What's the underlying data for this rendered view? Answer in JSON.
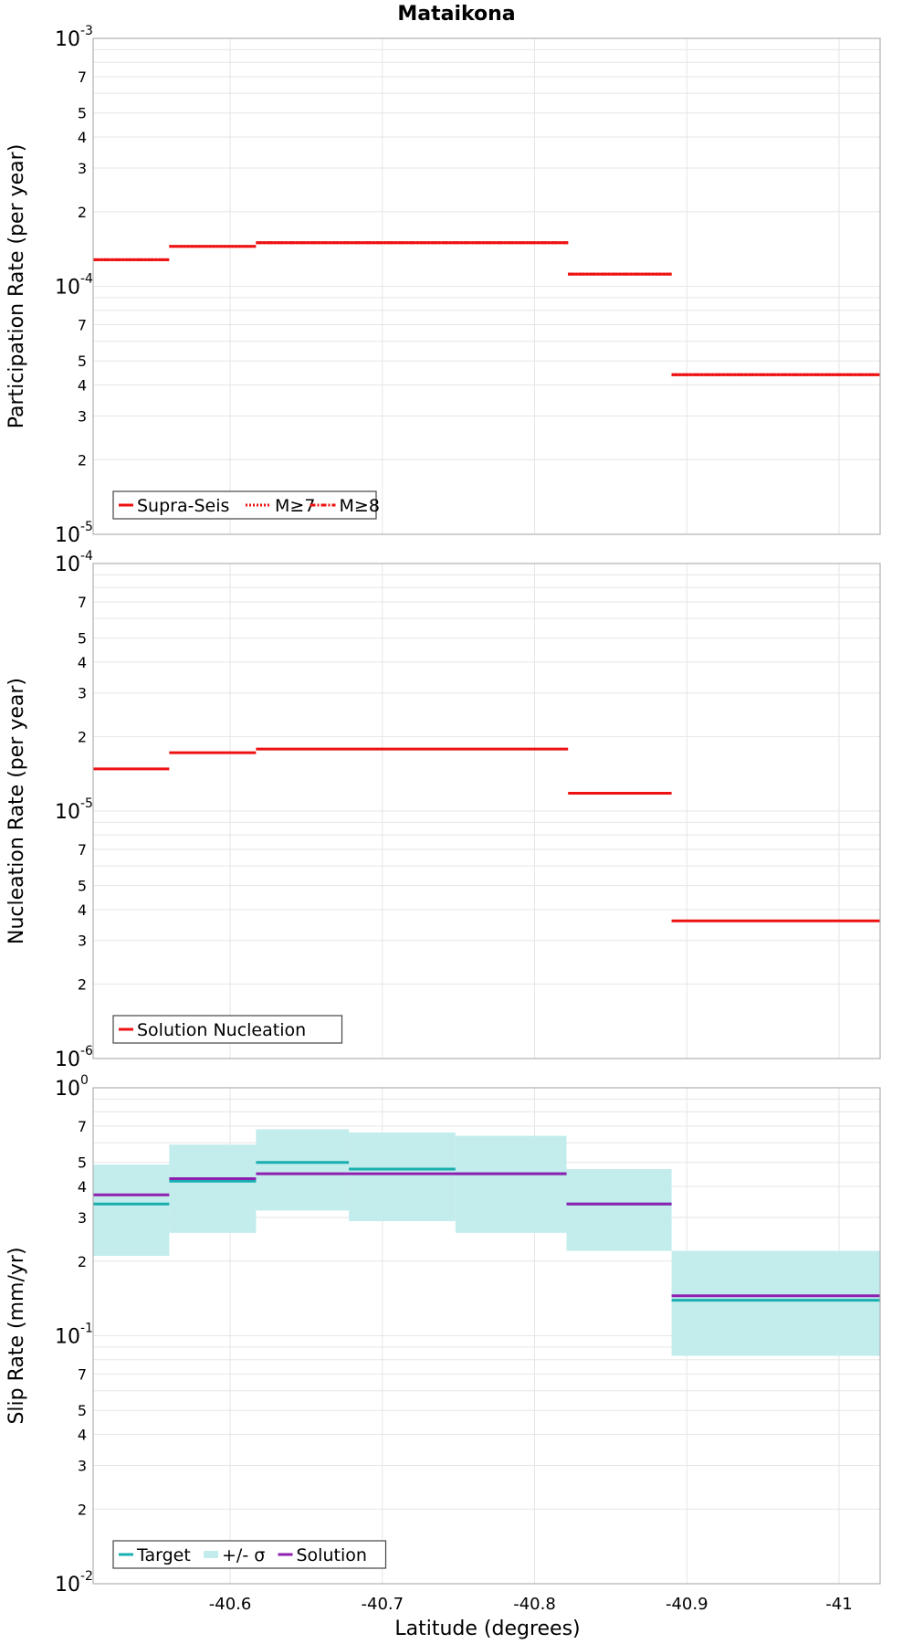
{
  "chart_data": {
    "type": "line",
    "title": "Mataikona",
    "xlabel": "Latitude (degrees)",
    "xlim": [
      -40.51,
      -41.027
    ],
    "xticks": [
      "-40.6",
      "-40.7",
      "-40.8",
      "-40.9",
      "-41"
    ],
    "xtick_values": [
      -40.6,
      -40.7,
      -40.8,
      -40.9,
      -41.0
    ],
    "panels": [
      {
        "name": "participation",
        "ylabel": "Participation Rate (per year)",
        "yscale": "log",
        "ylim": [
          1e-05,
          0.001
        ],
        "decade_labels": [
          {
            "base": "10",
            "exp": "-3"
          },
          {
            "base": "10",
            "exp": "-4"
          },
          {
            "base": "10",
            "exp": "-5"
          }
        ],
        "minor_labels": [
          "7",
          "5",
          "4",
          "3",
          "2"
        ],
        "legend": [
          "Supra-Seis",
          "M≥7",
          "M≥8"
        ],
        "color": "#ee1111",
        "series": [
          {
            "name": "Supra-Seis",
            "style": "solid",
            "segments": [
              [
                -40.51,
                -40.56,
                0.000128
              ],
              [
                -40.56,
                -40.617,
                0.000145
              ],
              [
                -40.617,
                -40.822,
                0.00015
              ],
              [
                -40.822,
                -40.89,
                0.000112
              ],
              [
                -40.89,
                -41.027,
                4.4e-05
              ]
            ]
          },
          {
            "name": "M≥7",
            "style": "dotted",
            "segments": [
              [
                -40.51,
                -40.56,
                0.000128
              ],
              [
                -40.56,
                -40.617,
                0.000145
              ],
              [
                -40.617,
                -40.822,
                0.00015
              ],
              [
                -40.822,
                -40.89,
                0.000112
              ],
              [
                -40.89,
                -41.027,
                4.4e-05
              ]
            ]
          },
          {
            "name": "M≥8",
            "style": "dashdot",
            "segments": [
              [
                -40.51,
                -40.56,
                0.000128
              ],
              [
                -40.617,
                -40.822,
                0.00015
              ],
              [
                -40.822,
                -40.89,
                0.000112
              ],
              [
                -40.89,
                -41.027,
                4.4e-05
              ]
            ]
          }
        ]
      },
      {
        "name": "nucleation",
        "ylabel": "Nucleation Rate (per year)",
        "yscale": "log",
        "ylim": [
          1e-06,
          0.0001
        ],
        "decade_labels": [
          {
            "base": "10",
            "exp": "-4"
          },
          {
            "base": "10",
            "exp": "-5"
          },
          {
            "base": "10",
            "exp": "-6"
          }
        ],
        "minor_labels": [
          "7",
          "5",
          "4",
          "3",
          "2"
        ],
        "legend": [
          "Solution Nucleation"
        ],
        "color": "#ee1111",
        "series": [
          {
            "name": "Solution Nucleation",
            "style": "solid",
            "segments": [
              [
                -40.51,
                -40.56,
                1.48e-05
              ],
              [
                -40.56,
                -40.617,
                1.72e-05
              ],
              [
                -40.617,
                -40.822,
                1.78e-05
              ],
              [
                -40.822,
                -40.89,
                1.18e-05
              ],
              [
                -40.89,
                -41.027,
                3.6e-06
              ]
            ]
          }
        ]
      },
      {
        "name": "slip",
        "ylabel": "Slip Rate (mm/yr)",
        "yscale": "log",
        "ylim": [
          0.01,
          1
        ],
        "decade_labels": [
          {
            "base": "10",
            "exp": "0"
          },
          {
            "base": "10",
            "exp": "-1"
          },
          {
            "base": "10",
            "exp": "-2"
          }
        ],
        "minor_labels": [
          "7",
          "5",
          "4",
          "3",
          "2"
        ],
        "legend": [
          "Target",
          "+/- σ",
          "Solution"
        ],
        "target_color": "#1aafaf",
        "band_color": "#c3ecec",
        "solution_color": "#8e1fb0",
        "sigma_bands": [
          [
            -40.51,
            -40.56,
            0.21,
            0.49
          ],
          [
            -40.56,
            -40.617,
            0.26,
            0.59
          ],
          [
            -40.617,
            -40.678,
            0.32,
            0.68
          ],
          [
            -40.678,
            -40.748,
            0.29,
            0.66
          ],
          [
            -40.748,
            -40.821,
            0.26,
            0.64
          ],
          [
            -40.821,
            -40.89,
            0.22,
            0.47
          ],
          [
            -40.89,
            -41.027,
            0.083,
            0.22
          ]
        ],
        "target": [
          [
            -40.51,
            -40.56,
            0.34
          ],
          [
            -40.56,
            -40.617,
            0.42
          ],
          [
            -40.617,
            -40.678,
            0.5
          ],
          [
            -40.678,
            -40.748,
            0.47
          ],
          [
            -40.748,
            -40.821,
            0.45
          ],
          [
            -40.821,
            -40.89,
            0.34
          ],
          [
            -40.89,
            -41.027,
            0.139
          ]
        ],
        "solution": [
          [
            -40.51,
            -40.56,
            0.37
          ],
          [
            -40.56,
            -40.617,
            0.43
          ],
          [
            -40.617,
            -40.821,
            0.45
          ],
          [
            -40.821,
            -40.89,
            0.34
          ],
          [
            -40.89,
            -41.027,
            0.145
          ]
        ]
      }
    ]
  }
}
